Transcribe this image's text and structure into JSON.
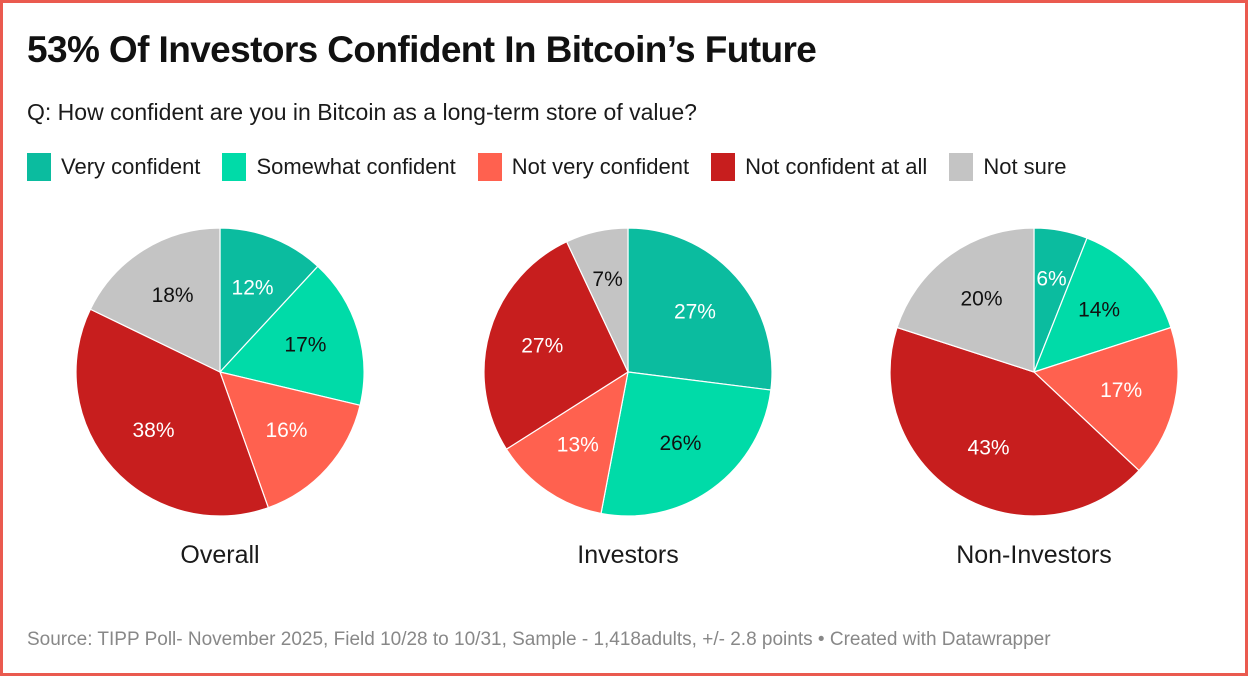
{
  "title": "53% Of Investors Confident In Bitcoin’s Future",
  "subtitle": "Q: How confident are you in Bitcoin as a long-term store of value?",
  "footer": {
    "source": "Source: TIPP Poll- November 2025, Field 10/28 to 10/31, Sample - 1,418adults, +/- 2.8 points",
    "separator": " • ",
    "credit": "Created with Datawrapper"
  },
  "colors": {
    "border": "#ea5a4f",
    "very_confident": "#0bbc9f",
    "somewhat_confident": "#00dba8",
    "not_very_confident": "#ff614f",
    "not_confident_at_all": "#c71e1e",
    "not_sure": "#c4c4c4"
  },
  "legend": [
    {
      "label": "Very confident",
      "color": "#0bbc9f"
    },
    {
      "label": "Somewhat confident",
      "color": "#00dba8"
    },
    {
      "label": "Not very confident",
      "color": "#ff614f"
    },
    {
      "label": "Not confident at all",
      "color": "#c71e1e"
    },
    {
      "label": "Not sure",
      "color": "#c4c4c4"
    }
  ],
  "chart_data": [
    {
      "type": "pie",
      "title": "Overall",
      "categories": [
        "Very confident",
        "Somewhat confident",
        "Not very confident",
        "Not confident at all",
        "Not sure"
      ],
      "values": [
        12,
        17,
        16,
        38,
        18
      ],
      "labels": [
        "12%",
        "17%",
        "16%",
        "38%",
        "18%"
      ],
      "label_colors": [
        "#ffffff",
        "#111111",
        "#ffffff",
        "#ffffff",
        "#111111"
      ]
    },
    {
      "type": "pie",
      "title": "Investors",
      "categories": [
        "Very confident",
        "Somewhat confident",
        "Not very confident",
        "Not confident at all",
        "Not sure"
      ],
      "values": [
        27,
        26,
        13,
        27,
        7
      ],
      "labels": [
        "27%",
        "26%",
        "13%",
        "27%",
        "7%"
      ],
      "label_colors": [
        "#ffffff",
        "#111111",
        "#ffffff",
        "#ffffff",
        "#111111"
      ]
    },
    {
      "type": "pie",
      "title": "Non-Investors",
      "categories": [
        "Very confident",
        "Somewhat confident",
        "Not very confident",
        "Not confident at all",
        "Not sure"
      ],
      "values": [
        6,
        14,
        17,
        43,
        20
      ],
      "labels": [
        "6%",
        "14%",
        "17%",
        "43%",
        "20%"
      ],
      "label_colors": [
        "#ffffff",
        "#111111",
        "#ffffff",
        "#ffffff",
        "#111111"
      ]
    }
  ]
}
